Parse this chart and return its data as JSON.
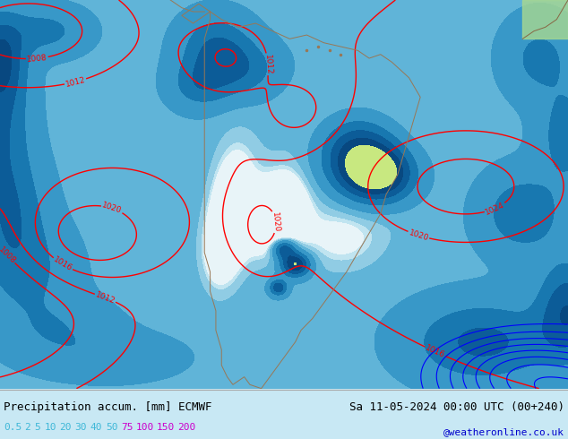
{
  "title_left": "Precipitation accum. [mm] ECMWF",
  "title_right": "Sa 11-05-2024 00:00 UTC (00+240)",
  "credit": "@weatheronline.co.uk",
  "legend_values": [
    "0.5",
    "2",
    "5",
    "10",
    "20",
    "30",
    "40",
    "50",
    "75",
    "100",
    "150",
    "200"
  ],
  "legend_text_colors_cyan": [
    0,
    1,
    2,
    3,
    4,
    5,
    6,
    7
  ],
  "legend_text_colors_magenta": [
    8,
    9,
    10,
    11
  ],
  "cyan_color": "#40b8d8",
  "magenta_color": "#cc00cc",
  "font_color_left": "#000000",
  "font_color_right": "#000000",
  "credit_color": "#0000cc",
  "bottom_bg": "#ffffff",
  "figsize": [
    6.34,
    4.9
  ],
  "dpi": 100,
  "precip_levels": [
    0,
    0.5,
    2,
    5,
    10,
    20,
    30,
    40,
    50,
    75,
    100,
    150,
    200
  ],
  "precip_colors": [
    "#e8f4f8",
    "#c0e4f0",
    "#90cce4",
    "#60b4d8",
    "#3898c8",
    "#1878b0",
    "#0c5c98",
    "#084880",
    "#c8e880",
    "#e8e000",
    "#e89000",
    "#e05000"
  ],
  "isobar_red_levels": [
    1008,
    1012,
    1016,
    1020,
    1024,
    1028
  ],
  "isobar_blue_levels": [
    1020,
    1024,
    1028,
    1032,
    1036,
    1040,
    1044,
    1048
  ],
  "map_bg": "#e0f0f8"
}
